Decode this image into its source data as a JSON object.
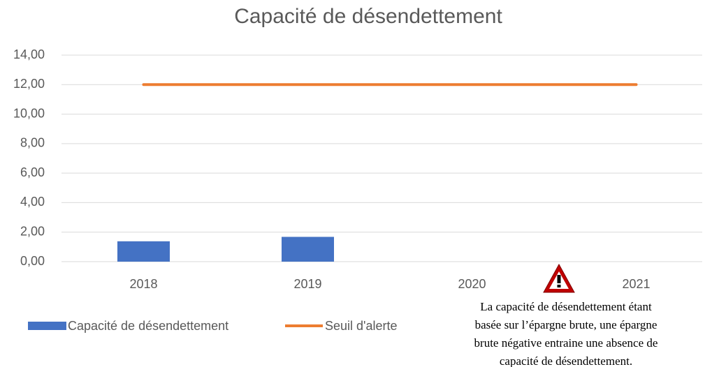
{
  "chart_data": {
    "type": "bar",
    "title": "Capacité de désendettement",
    "categories": [
      "2018",
      "2019",
      "2020",
      "2021"
    ],
    "series": [
      {
        "name": "Capacité de désendettement",
        "type": "bar",
        "color": "#4472c4",
        "values": [
          1.38,
          1.68,
          null,
          null
        ]
      },
      {
        "name": "Seuil d'alerte",
        "type": "line",
        "color": "#ed7d31",
        "values": [
          12,
          12,
          12,
          12
        ]
      }
    ],
    "ylim": [
      0,
      14
    ],
    "yticks": [
      {
        "value": 0,
        "label": "0,00"
      },
      {
        "value": 2,
        "label": "2,00"
      },
      {
        "value": 4,
        "label": "4,00"
      },
      {
        "value": 6,
        "label": "6,00"
      },
      {
        "value": 8,
        "label": "8,00"
      },
      {
        "value": 10,
        "label": "10,00"
      },
      {
        "value": 12,
        "label": "12,00"
      },
      {
        "value": 14,
        "label": "14,00"
      }
    ],
    "grid": true,
    "legend": "bottom",
    "annotation": [
      "La capacité de désendettement étant",
      "basée sur l’épargne brute, une épargne",
      "brute négative entraine une absence de",
      "capacité de désendettement."
    ]
  }
}
